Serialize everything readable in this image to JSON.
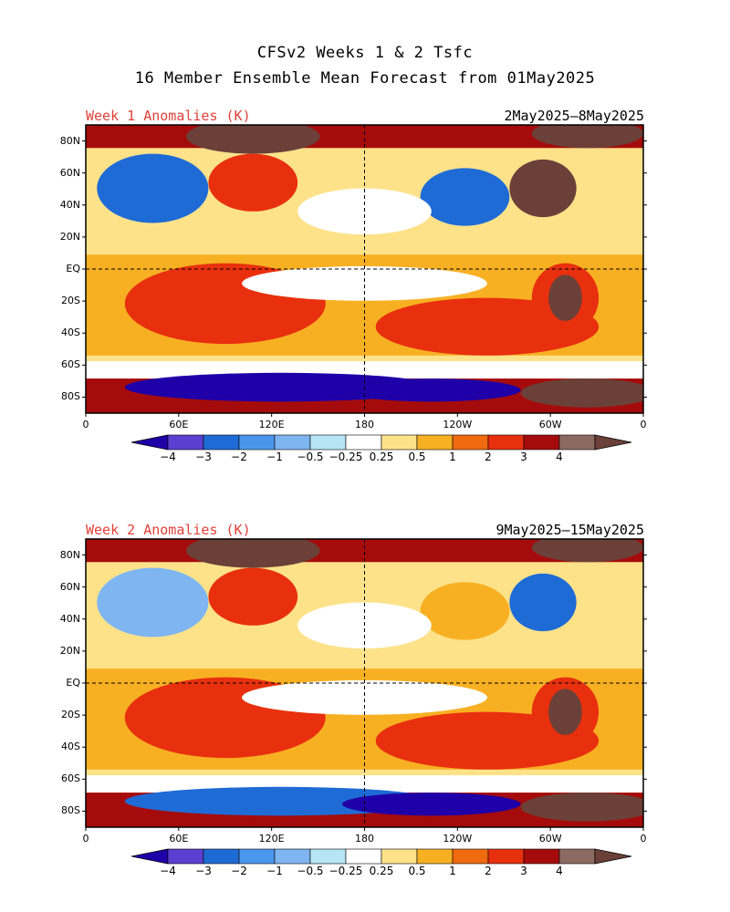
{
  "title": {
    "line1": "CFSv2 Weeks 1 & 2 Tsfc",
    "line2": "16 Member Ensemble Mean Forecast from 01May2025"
  },
  "panels": [
    {
      "title": "Week 1 Anomalies (K)",
      "dates": "2May2025–8May2025"
    },
    {
      "title": "Week 2 Anomalies (K)",
      "dates": "9May2025–15May2025"
    }
  ],
  "axes": {
    "y_ticks": [
      "80N",
      "60N",
      "40N",
      "20N",
      "EQ",
      "20S",
      "40S",
      "60S",
      "80S"
    ],
    "x_ticks": [
      "0",
      "60E",
      "120E",
      "180",
      "120W",
      "60W",
      "0"
    ]
  },
  "colorbar": {
    "labels": [
      "−4",
      "−3",
      "−2",
      "−1",
      "−0.5",
      "−0.25",
      "0.25",
      "0.5",
      "1",
      "2",
      "3",
      "4"
    ],
    "colors": [
      "#1f00a8",
      "#5a3fd0",
      "#1f6bd6",
      "#4a96ec",
      "#7fb6f2",
      "#b6e6f6",
      "#ffffff",
      "#fde28a",
      "#f8b023",
      "#f06a10",
      "#e8300e",
      "#a50b0b",
      "#8c6a62",
      "#6b4038"
    ]
  },
  "map_palette": {
    "deep_cold": "#1f00a8",
    "cold": "#1f6bd6",
    "cool": "#7fb6f2",
    "neutral": "#ffffff",
    "mild": "#fde28a",
    "warm": "#f8b023",
    "hot": "#e8300e",
    "very_hot": "#a50b0b",
    "extreme": "#6b4038"
  }
}
